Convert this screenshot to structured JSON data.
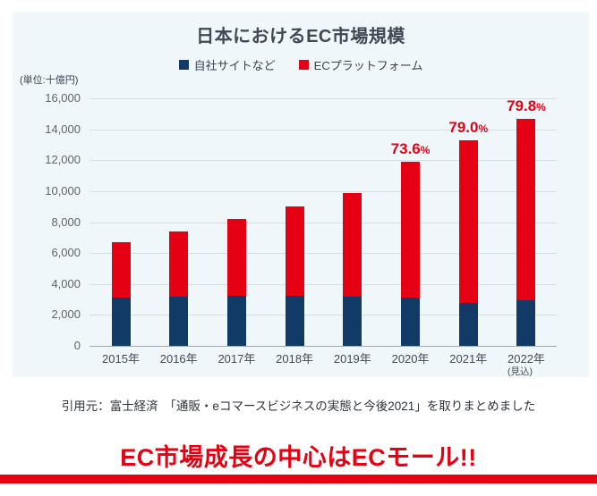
{
  "unit_note": "(単位:十億円)",
  "chart_data": {
    "type": "bar",
    "stacked": true,
    "title": "日本におけるEC市場規模",
    "unit": "十億円",
    "categories": [
      "2015年",
      "2016年",
      "2017年",
      "2018年",
      "2019年",
      "2020年",
      "2021年",
      "2022年"
    ],
    "category_notes": [
      "",
      "",
      "",
      "",
      "",
      "",
      "",
      "(見込)"
    ],
    "series": [
      {
        "name": "自社サイトなど",
        "color": "#123a66",
        "values": [
          3100,
          3200,
          3250,
          3250,
          3150,
          3140,
          2790,
          2970
        ]
      },
      {
        "name": "ECプラットフォーム",
        "color": "#e60014",
        "values": [
          3600,
          4200,
          4950,
          5750,
          6750,
          8760,
          10510,
          11730
        ]
      }
    ],
    "totals": [
      6700,
      7400,
      8200,
      9000,
      9900,
      11900,
      13300,
      14700
    ],
    "annotations": [
      {
        "category": "2020年",
        "text": "73.6",
        "suffix": "%"
      },
      {
        "category": "2021年",
        "text": "79.0",
        "suffix": "%"
      },
      {
        "category": "2022年",
        "text": "79.8",
        "suffix": "%"
      }
    ],
    "ylim": [
      0,
      16000
    ],
    "ytick_step": 2000,
    "yticks": [
      "16,000",
      "14,000",
      "12,000",
      "10,000",
      "8,000",
      "6,000",
      "4,000",
      "2,000",
      "0"
    ],
    "grid": true,
    "legend_position": "top"
  },
  "source_line": "引用元：富士経済　「通販・eコマースビジネスの実態と今後2021」を取りまとめました",
  "headline": "EC市場成長の中心はECモール!!",
  "colors": {
    "card_bg": "#eff7fa",
    "navy": "#123a66",
    "red": "#e60014",
    "headline_red": "#e60012"
  }
}
